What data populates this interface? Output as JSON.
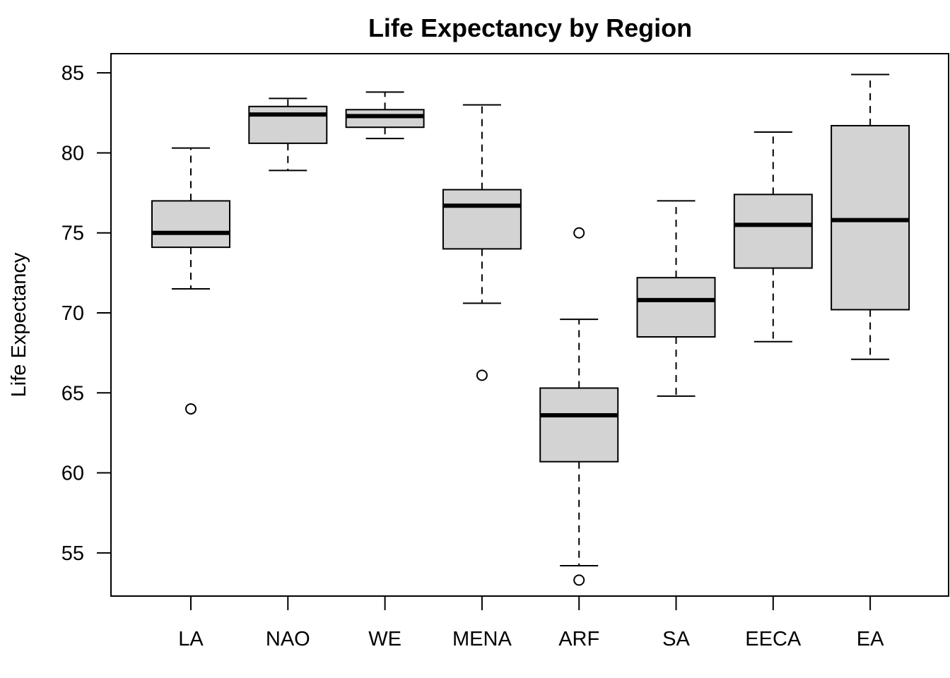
{
  "chart_data": {
    "type": "boxplot",
    "title": "Life Expectancy by Region",
    "xlabel": "",
    "ylabel": "Life Expectancy",
    "ylim": [
      52.3,
      86.2
    ],
    "yticks": [
      55,
      60,
      65,
      70,
      75,
      80,
      85
    ],
    "categories": [
      "LA",
      "NAO",
      "WE",
      "MENA",
      "ARF",
      "SA",
      "EECA",
      "EA"
    ],
    "box_color": "#d3d3d3",
    "grid": false,
    "legend": "none",
    "boxes": [
      {
        "category": "LA",
        "whisker_low": 71.5,
        "q1": 74.1,
        "median": 75.0,
        "q3": 77.0,
        "whisker_high": 80.3,
        "outliers": [
          64.0
        ]
      },
      {
        "category": "NAO",
        "whisker_low": 78.9,
        "q1": 80.6,
        "median": 82.4,
        "q3": 82.9,
        "whisker_high": 83.4,
        "outliers": []
      },
      {
        "category": "WE",
        "whisker_low": 80.9,
        "q1": 81.6,
        "median": 82.3,
        "q3": 82.7,
        "whisker_high": 83.8,
        "outliers": []
      },
      {
        "category": "MENA",
        "whisker_low": 70.6,
        "q1": 74.0,
        "median": 76.7,
        "q3": 77.7,
        "whisker_high": 83.0,
        "outliers": [
          66.1
        ]
      },
      {
        "category": "ARF",
        "whisker_low": 54.2,
        "q1": 60.7,
        "median": 63.6,
        "q3": 65.3,
        "whisker_high": 69.6,
        "outliers": [
          75.0,
          53.3
        ]
      },
      {
        "category": "SA",
        "whisker_low": 64.8,
        "q1": 68.5,
        "median": 70.8,
        "q3": 72.2,
        "whisker_high": 77.0,
        "outliers": []
      },
      {
        "category": "EECA",
        "whisker_low": 68.2,
        "q1": 72.8,
        "median": 75.5,
        "q3": 77.4,
        "whisker_high": 81.3,
        "outliers": []
      },
      {
        "category": "EA",
        "whisker_low": 67.1,
        "q1": 70.2,
        "median": 75.8,
        "q3": 81.7,
        "whisker_high": 84.9,
        "outliers": []
      }
    ]
  }
}
